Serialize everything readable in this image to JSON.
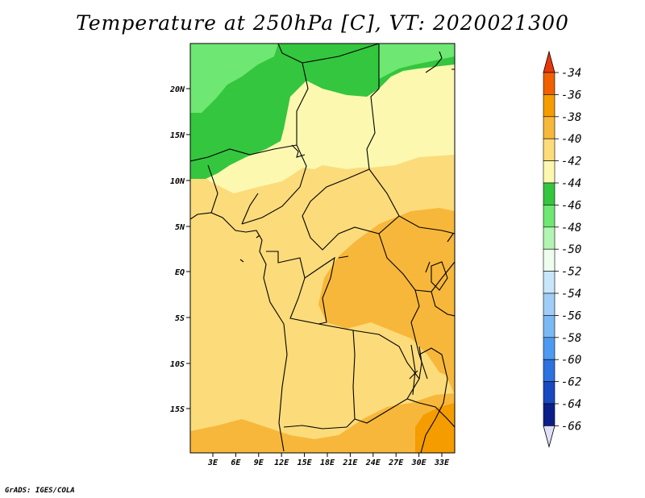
{
  "title": "Temperature at 250hPa [C], VT: 2020021300",
  "credit": "GrADS: IGES/COLA",
  "lat_ticks": [
    "20N",
    "15N",
    "10N",
    "5N",
    "EQ",
    "5S",
    "10S",
    "15S"
  ],
  "lon_ticks": [
    "3E",
    "6E",
    "9E",
    "12E",
    "15E",
    "18E",
    "21E",
    "24E",
    "27E",
    "30E",
    "33E"
  ],
  "colorbar": {
    "labels": [
      "-34",
      "-36",
      "-38",
      "-40",
      "-42",
      "-44",
      "-46",
      "-48",
      "-50",
      "-52",
      "-54",
      "-56",
      "-58",
      "-60",
      "-62",
      "-64",
      "-66"
    ],
    "colors": [
      "#e8380a",
      "#f06000",
      "#f59c00",
      "#f7b73a",
      "#fcdb7a",
      "#fdf8b0",
      "#34c63e",
      "#6ee872",
      "#b2f5b2",
      "#eefeee",
      "#c8e6fb",
      "#a0cdf7",
      "#7ab9f4",
      "#4d9af2",
      "#2c72e0",
      "#1848c2",
      "#0a1f8a",
      "#06106a"
    ],
    "top_color": "#e8380a",
    "bottom_color": "#e0e0fa"
  },
  "map": {
    "colors": {
      "c36": "#f06000",
      "c38": "#f59c00",
      "c40": "#f7b73a",
      "c42": "#fcdb7a",
      "c44": "#fdf8b0",
      "c46": "#34c63e",
      "c48": "#6ee872"
    }
  }
}
